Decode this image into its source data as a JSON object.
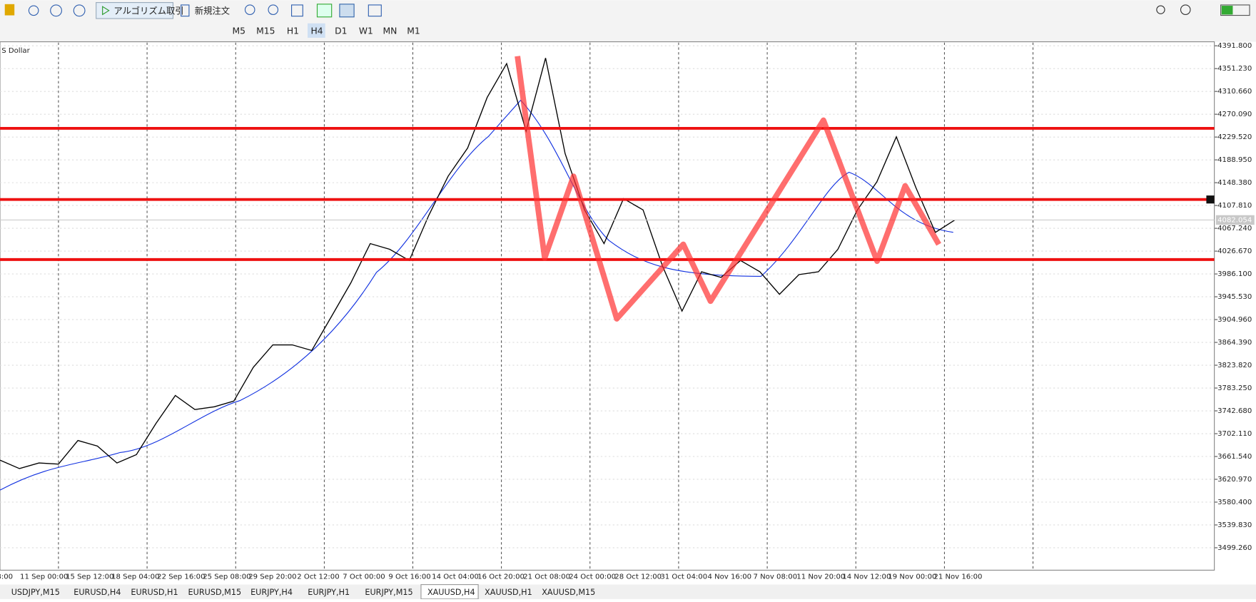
{
  "toolbar": {
    "algo": "アルゴリズム取引",
    "new_order": "新規注文",
    "timeframes": [
      "M5",
      "M15",
      "H1",
      "H4",
      "D1",
      "W1",
      "MN",
      "M1"
    ],
    "active_timeframe": "H4"
  },
  "chart_data": {
    "type": "price",
    "symbol": "S Dollar",
    "current_price": {
      "value": 4082.054,
      "label": "4082.054"
    },
    "ylim": [
      3459.4,
      4397.5
    ],
    "yticks": [
      {
        "value": 4391.8,
        "label": "4391.800"
      },
      {
        "value": 4351.23,
        "label": "4351.230"
      },
      {
        "value": 4310.66,
        "label": "4310.660"
      },
      {
        "value": 4270.09,
        "label": "4270.090"
      },
      {
        "value": 4229.52,
        "label": "4229.520"
      },
      {
        "value": 4188.95,
        "label": "4188.950"
      },
      {
        "value": 4148.38,
        "label": "4148.380"
      },
      {
        "value": 4107.81,
        "label": "4107.810"
      },
      {
        "value": 4067.24,
        "label": "4067.240"
      },
      {
        "value": 4026.67,
        "label": "4026.670"
      },
      {
        "value": 3986.1,
        "label": "3986.100"
      },
      {
        "value": 3945.53,
        "label": "3945.530"
      },
      {
        "value": 3904.96,
        "label": "3904.960"
      },
      {
        "value": 3864.39,
        "label": "3864.390"
      },
      {
        "value": 3823.82,
        "label": "3823.820"
      },
      {
        "value": 3783.25,
        "label": "3783.250"
      },
      {
        "value": 3742.68,
        "label": "3742.680"
      },
      {
        "value": 3702.11,
        "label": "3702.110"
      },
      {
        "value": 3661.54,
        "label": "3661.540"
      },
      {
        "value": 3620.97,
        "label": "3620.970"
      },
      {
        "value": 3580.4,
        "label": "3580.400"
      },
      {
        "value": 3539.83,
        "label": "3539.830"
      },
      {
        "value": 3499.26,
        "label": "3499.260"
      }
    ],
    "x_labels": [
      "8:00",
      "11 Sep 00:00",
      "15 Sep 12:00",
      "18 Sep 04:00",
      "22 Sep 16:00",
      "25 Sep 08:00",
      "29 Sep 20:00",
      "2 Oct 12:00",
      "7 Oct 00:00",
      "9 Oct 16:00",
      "14 Oct 04:00",
      "16 Oct 20:00",
      "21 Oct 08:00",
      "24 Oct 00:00",
      "28 Oct 12:00",
      "31 Oct 04:00",
      "4 Nov 16:00",
      "7 Nov 08:00",
      "11 Nov 20:00",
      "14 Nov 12:00",
      "19 Nov 00:00",
      "21 Nov 16:00"
    ],
    "closes": [
      3655,
      3640,
      3650,
      3648,
      3690,
      3680,
      3650,
      3665,
      3720,
      3770,
      3745,
      3750,
      3760,
      3820,
      3860,
      3860,
      3850,
      3910,
      3970,
      4040,
      4030,
      4010,
      4090,
      4160,
      4210,
      4300,
      4360,
      4240,
      4370,
      4200,
      4100,
      4040,
      4120,
      4100,
      4000,
      3920,
      3990,
      3980,
      4010,
      3990,
      3950,
      3985,
      3990,
      4030,
      4100,
      4150,
      4230,
      4140,
      4060,
      4082
    ],
    "levels": [
      4245,
      4118.5,
      4011.7
    ],
    "level_color": "#ee1111",
    "line_color": "#000000"
  },
  "tabs": [
    "USDJPY,M15",
    "EURUSD,H4",
    "EURUSD,H1",
    "EURUSD,M15",
    "EURJPY,H4",
    "EURJPY,H1",
    "EURJPY,M15",
    "XAUUSD,H4",
    "XAUUSD,H1",
    "XAUUSD,M15"
  ],
  "active_tab": 7
}
